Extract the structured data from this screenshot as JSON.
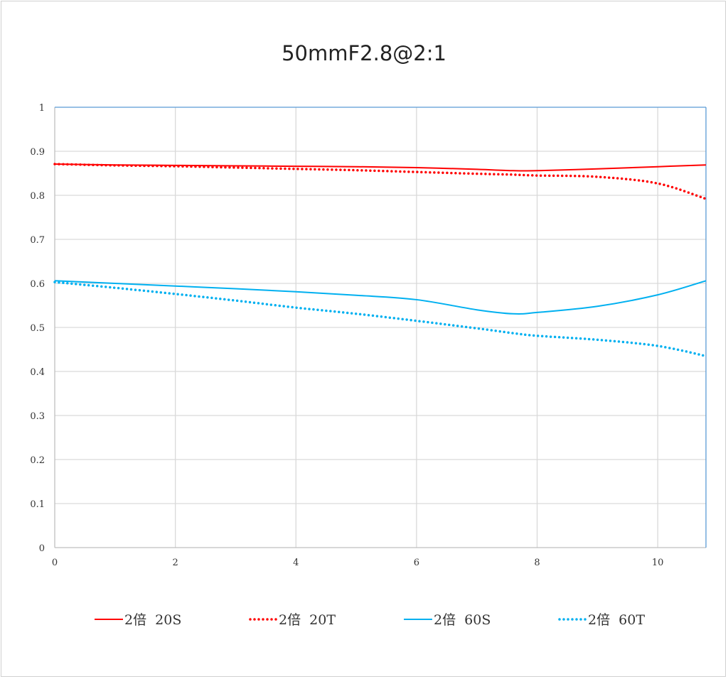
{
  "chart_data": {
    "type": "line",
    "title": "50mmF2.8@2:1",
    "xlabel": "",
    "ylabel": "",
    "xlim": [
      0,
      10.8
    ],
    "ylim": [
      0,
      1
    ],
    "xticks": [
      "0",
      "2",
      "4",
      "6",
      "8",
      "10"
    ],
    "yticks": [
      "0",
      "0.1",
      "0.2",
      "0.3",
      "0.4",
      "0.5",
      "0.6",
      "0.7",
      "0.8",
      "0.9",
      "1"
    ],
    "grid": true,
    "legend_placement": "bottom",
    "x": [
      0,
      1,
      2,
      3,
      4,
      5,
      6,
      7,
      7.6,
      8,
      9,
      10,
      10.8
    ],
    "series": [
      {
        "name": "2倍 20S",
        "color": "#ff0000",
        "style": "solid",
        "values": [
          0.871,
          0.869,
          0.868,
          0.867,
          0.866,
          0.865,
          0.863,
          0.859,
          0.856,
          0.856,
          0.86,
          0.865,
          0.869
        ]
      },
      {
        "name": "2倍 20T",
        "color": "#ff0000",
        "style": "dotted",
        "values": [
          0.871,
          0.868,
          0.866,
          0.863,
          0.86,
          0.857,
          0.853,
          0.849,
          0.847,
          0.845,
          0.842,
          0.827,
          0.792
        ]
      },
      {
        "name": "2倍 60S",
        "color": "#00b0f0",
        "style": "solid",
        "values": [
          0.606,
          0.6,
          0.594,
          0.588,
          0.581,
          0.573,
          0.563,
          0.54,
          0.531,
          0.534,
          0.548,
          0.574,
          0.606
        ]
      },
      {
        "name": "2倍 60T",
        "color": "#00b0f0",
        "style": "dotted",
        "values": [
          0.603,
          0.59,
          0.576,
          0.561,
          0.545,
          0.531,
          0.515,
          0.498,
          0.487,
          0.481,
          0.472,
          0.458,
          0.435
        ]
      }
    ]
  }
}
